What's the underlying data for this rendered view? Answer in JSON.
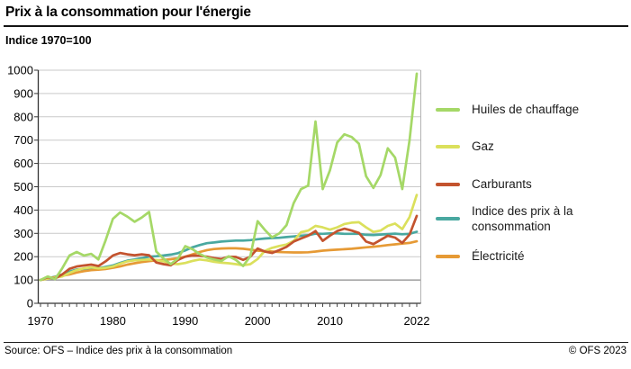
{
  "header": {
    "title": "Prix à la consommation pour l'énergie",
    "subtitle": "Indice 1970=100"
  },
  "footer": {
    "source": "Source: OFS – Indice des prix à la consommation",
    "copyright": "© OFS 2023"
  },
  "chart_data": {
    "type": "line",
    "title": "Prix à la consommation pour l'énergie",
    "subtitle": "Indice 1970=100",
    "x_start": 1970,
    "x_end": 2022,
    "ylim": [
      0,
      1000
    ],
    "y_tick_step": 100,
    "y_tick_labels": [
      "0",
      "100",
      "200",
      "300",
      "400",
      "500",
      "600",
      "700",
      "800",
      "900",
      "1000"
    ],
    "x_tick_labels": [
      {
        "year": 1970,
        "label": "1970"
      },
      {
        "year": 1980,
        "label": "1980"
      },
      {
        "year": 1990,
        "label": "1990"
      },
      {
        "year": 2000,
        "label": "2000"
      },
      {
        "year": 2010,
        "label": "2010"
      },
      {
        "year": 2022,
        "label": "2022"
      }
    ],
    "grid": true,
    "baseline_value": 100,
    "legend_position": "right",
    "series": [
      {
        "name": "Huiles de chauffage",
        "color": "#a5d867",
        "values": [
          100,
          115,
          104,
          150,
          205,
          220,
          205,
          212,
          188,
          270,
          362,
          390,
          372,
          350,
          368,
          392,
          222,
          192,
          168,
          192,
          245,
          232,
          212,
          196,
          188,
          182,
          202,
          186,
          160,
          202,
          352,
          315,
          283,
          300,
          335,
          430,
          490,
          505,
          780,
          490,
          570,
          690,
          725,
          713,
          685,
          545,
          495,
          550,
          665,
          625,
          490,
          700,
          985
        ]
      },
      {
        "name": "Gaz",
        "color": "#dbe05c",
        "values": [
          100,
          106,
          110,
          115,
          130,
          143,
          150,
          154,
          150,
          152,
          158,
          170,
          180,
          184,
          186,
          188,
          186,
          180,
          170,
          168,
          173,
          182,
          188,
          184,
          178,
          174,
          172,
          168,
          163,
          168,
          190,
          225,
          238,
          246,
          252,
          268,
          305,
          312,
          332,
          326,
          316,
          326,
          340,
          346,
          348,
          326,
          306,
          312,
          332,
          342,
          318,
          370,
          465
        ]
      },
      {
        "name": "Carburants",
        "color": "#c3532e",
        "values": [
          100,
          112,
          106,
          124,
          148,
          158,
          162,
          166,
          160,
          180,
          205,
          216,
          210,
          206,
          210,
          206,
          175,
          168,
          163,
          186,
          200,
          205,
          204,
          200,
          194,
          190,
          200,
          199,
          186,
          200,
          235,
          222,
          216,
          228,
          242,
          265,
          278,
          290,
          310,
          268,
          290,
          310,
          320,
          312,
          302,
          265,
          254,
          272,
          290,
          282,
          259,
          295,
          375
        ]
      },
      {
        "name": "Indice des prix à la consommation",
        "color": "#49a8a0",
        "values": [
          100,
          107,
          114,
          124,
          136,
          145,
          147,
          149,
          151,
          156,
          162,
          173,
          183,
          188,
          194,
          200,
          202,
          205,
          209,
          215,
          227,
          240,
          250,
          258,
          261,
          265,
          267,
          269,
          269,
          271,
          275,
          278,
          280,
          281,
          284,
          287,
          290,
          292,
          299,
          298,
          300,
          300,
          298,
          298,
          298,
          294,
          293,
          295,
          297,
          299,
          296,
          298,
          307
        ]
      },
      {
        "name": "Électricité",
        "color": "#e69a35",
        "values": [
          100,
          106,
          112,
          118,
          124,
          132,
          138,
          142,
          144,
          147,
          152,
          158,
          166,
          172,
          177,
          181,
          184,
          186,
          189,
          193,
          200,
          210,
          220,
          228,
          233,
          235,
          236,
          236,
          234,
          230,
          226,
          224,
          222,
          220,
          219,
          218,
          218,
          219,
          222,
          226,
          228,
          230,
          232,
          234,
          237,
          240,
          243,
          246,
          250,
          253,
          256,
          259,
          266
        ]
      }
    ]
  }
}
